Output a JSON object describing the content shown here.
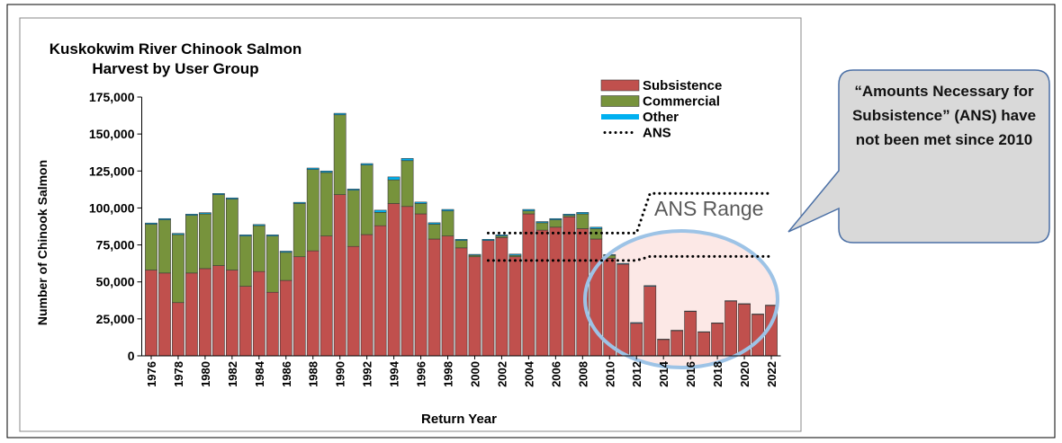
{
  "chart_data": {
    "type": "stacked_bar",
    "title": [
      "Kuskokwim River Chinook Salmon",
      "Harvest by User Group"
    ],
    "x_label": "Return Year",
    "y_label": "Number of Chinook Salmon",
    "x": [
      1976,
      1977,
      1978,
      1979,
      1980,
      1981,
      1982,
      1983,
      1984,
      1985,
      1986,
      1987,
      1988,
      1989,
      1990,
      1991,
      1992,
      1993,
      1994,
      1995,
      1996,
      1997,
      1998,
      1999,
      2000,
      2001,
      2002,
      2003,
      2004,
      2005,
      2006,
      2007,
      2008,
      2009,
      2010,
      2011,
      2012,
      2013,
      2014,
      2015,
      2016,
      2017,
      2018,
      2019,
      2020,
      2021,
      2022
    ],
    "xlim": [
      1975.3,
      2022.7
    ],
    "xticks": [
      1976,
      1978,
      1980,
      1982,
      1984,
      1986,
      1988,
      1990,
      1992,
      1994,
      1996,
      1998,
      2000,
      2002,
      2004,
      2006,
      2008,
      2010,
      2012,
      2014,
      2016,
      2018,
      2020,
      2022
    ],
    "ylim": [
      0,
      175000
    ],
    "yticks": [
      0,
      {
        "value": 25000,
        "label": "25,000"
      },
      {
        "value": 50000,
        "label": "50,000"
      },
      {
        "value": 75000,
        "label": "75,000"
      },
      {
        "value": 100000,
        "label": "100,000"
      },
      {
        "value": 125000,
        "label": "125,000"
      },
      {
        "value": 150000,
        "label": "150,000"
      },
      {
        "value": 175000,
        "label": "175,000"
      }
    ],
    "series": [
      {
        "name": "Subsistence",
        "color": "#c0504d",
        "values": [
          58000,
          56000,
          36000,
          56000,
          59000,
          61000,
          58000,
          47000,
          57000,
          43000,
          51000,
          67000,
          71000,
          81000,
          109000,
          74000,
          82000,
          88000,
          103000,
          101000,
          96000,
          79000,
          81000,
          73000,
          67000,
          78000,
          80000,
          67000,
          96000,
          85000,
          87000,
          94000,
          86000,
          79000,
          66000,
          62000,
          22000,
          47000,
          11000,
          17000,
          30000,
          16000,
          22000,
          37000,
          35000,
          28000,
          34000
        ]
      },
      {
        "name": "Commercial",
        "color": "#77933c",
        "values": [
          31000,
          36000,
          46000,
          39000,
          37000,
          48000,
          48000,
          34000,
          31000,
          38000,
          19000,
          36000,
          55000,
          43000,
          54000,
          38000,
          47000,
          9000,
          16000,
          31000,
          7000,
          10000,
          17000,
          5000,
          1000,
          0,
          1000,
          1000,
          2000,
          5000,
          5000,
          1000,
          10000,
          7000,
          2000,
          0,
          0,
          0,
          0,
          0,
          0,
          0,
          0,
          0,
          0,
          0,
          0
        ]
      },
      {
        "name": "Other",
        "color": "#00b0f0",
        "values": [
          800,
          800,
          800,
          800,
          800,
          800,
          800,
          800,
          800,
          800,
          800,
          800,
          1000,
          1000,
          1000,
          800,
          1000,
          1500,
          2000,
          1500,
          1000,
          1000,
          1000,
          800,
          600,
          800,
          800,
          800,
          1000,
          800,
          800,
          800,
          1000,
          1000,
          500,
          500,
          500,
          500,
          300,
          300,
          300,
          300,
          300,
          300,
          300,
          300,
          300
        ]
      },
      {
        "name": "ANS",
        "color": "#000000",
        "style": "dotted",
        "low": [
          null,
          null,
          null,
          null,
          null,
          null,
          null,
          null,
          null,
          null,
          null,
          null,
          null,
          null,
          null,
          null,
          null,
          null,
          null,
          null,
          null,
          null,
          null,
          null,
          null,
          64500,
          64500,
          64500,
          64500,
          64500,
          64500,
          64500,
          64500,
          64500,
          64500,
          64500,
          64500,
          67200,
          67200,
          67200,
          67200,
          67200,
          67200,
          67200,
          67200,
          67200,
          67200
        ],
        "high": [
          null,
          null,
          null,
          null,
          null,
          null,
          null,
          null,
          null,
          null,
          null,
          null,
          null,
          null,
          null,
          null,
          null,
          null,
          null,
          null,
          null,
          null,
          null,
          null,
          null,
          83000,
          83000,
          83000,
          83000,
          83000,
          83000,
          83000,
          83000,
          83000,
          83000,
          83000,
          83000,
          109800,
          109800,
          109800,
          109800,
          109800,
          109800,
          109800,
          109800,
          109800,
          109800
        ]
      }
    ],
    "range_label": "ANS Range",
    "callout": "“Amounts Necessary for Subsistence” (ANS) have not been met since 2010"
  }
}
